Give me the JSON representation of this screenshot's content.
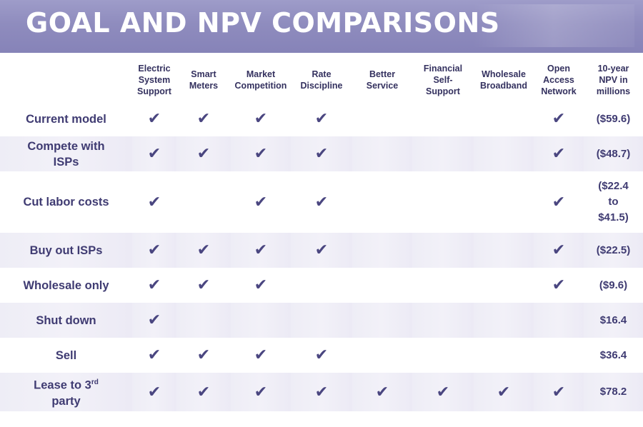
{
  "title": "GOAL AND NPV COMPARISONS",
  "columns": [
    "Electric\nSystem\nSupport",
    "Smart\nMeters",
    "Market\nCompetition",
    "Rate\nDiscipline",
    "Better\nService",
    "Financial\nSelf-\nSupport",
    "Wholesale\nBroadband",
    "Open\nAccess\nNetwork",
    "10-year\nNPV in\nmillions"
  ],
  "check_glyph": "✔",
  "colors": {
    "banner": "#8f8cbe",
    "text": "#3f3b72",
    "band": "#efeef7"
  },
  "rows": [
    {
      "label": "Current model",
      "checks": [
        true,
        true,
        true,
        true,
        false,
        false,
        false,
        true
      ],
      "npv": "($59.6)"
    },
    {
      "label": "Compete with ISPs",
      "checks": [
        true,
        true,
        true,
        true,
        false,
        false,
        false,
        true
      ],
      "npv": "($48.7)"
    },
    {
      "label": "Cut labor costs",
      "checks": [
        true,
        false,
        true,
        true,
        false,
        false,
        false,
        true
      ],
      "npv": "($22.4 to $41.5)"
    },
    {
      "label": "Buy out ISPs",
      "checks": [
        true,
        true,
        true,
        true,
        false,
        false,
        false,
        true
      ],
      "npv": "($22.5)"
    },
    {
      "label": "Wholesale only",
      "checks": [
        true,
        true,
        true,
        false,
        false,
        false,
        false,
        true
      ],
      "npv": "($9.6)"
    },
    {
      "label": "Shut down",
      "checks": [
        true,
        false,
        false,
        false,
        false,
        false,
        false,
        false
      ],
      "npv": "$16.4"
    },
    {
      "label": "Sell",
      "checks": [
        true,
        true,
        true,
        true,
        false,
        false,
        false,
        false
      ],
      "npv": "$36.4"
    },
    {
      "label": "Lease to 3rd party",
      "checks": [
        true,
        true,
        true,
        true,
        true,
        true,
        true,
        true
      ],
      "npv": "$78.2"
    }
  ]
}
